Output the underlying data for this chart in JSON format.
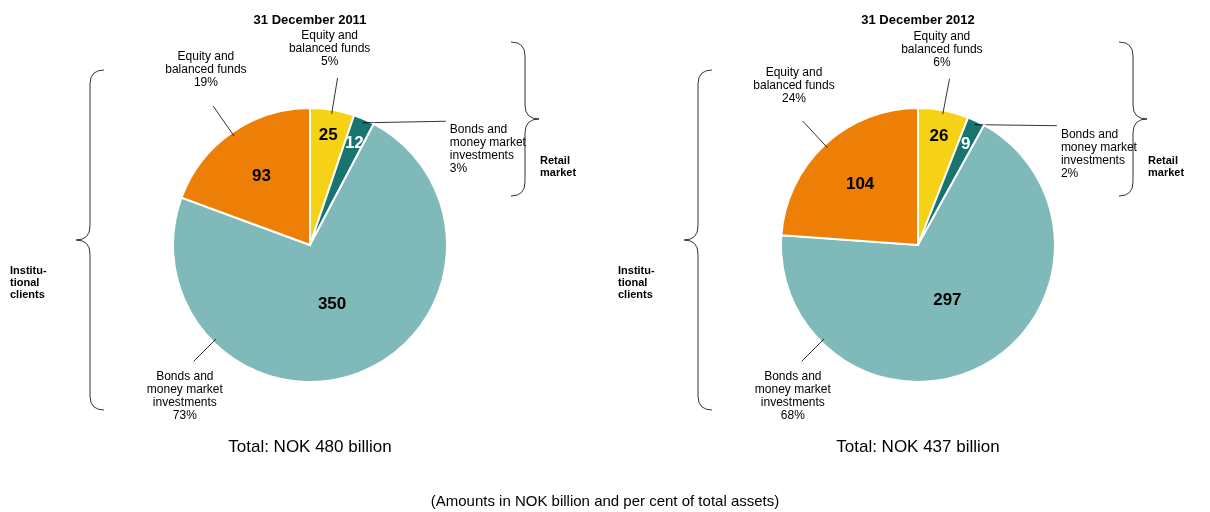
{
  "chart_data": [
    {
      "type": "pie",
      "title": "31 December 2011",
      "subtitle": "Total: NOK 480 billion",
      "categories": [
        "Equity and\nbalanced funds\n5%",
        "Bonds and\nmoney market\ninvestments\n3%",
        "Bonds and\nmoney market\ninvestments\n73%",
        "Equity and\nbalanced funds\n19%"
      ],
      "values": [
        25,
        12,
        350,
        93
      ],
      "colors": [
        "#f5d215",
        "#17746f",
        "#80b9b9",
        "#ee7f06"
      ],
      "data_labels": true,
      "annotations": [
        "Institu-\ntional\nclients",
        "Retail\nmarket",
        "(Amounts in NOK billion and per cent of total assets)"
      ]
    },
    {
      "type": "pie",
      "title": "31 December 2012",
      "subtitle": "Total: NOK 437 billion",
      "categories": [
        "Equity and\nbalanced funds\n6%",
        "Bonds and\nmoney market\ninvestments\n2%",
        "Bonds and\nmoney market\ninvestments\n68%",
        "Equity and\nbalanced funds\n24%"
      ],
      "values": [
        26,
        9,
        297,
        104
      ],
      "colors": [
        "#f5d215",
        "#17746f",
        "#80b9b9",
        "#ee7f06"
      ],
      "data_labels": true,
      "annotations": [
        "Institu-\ntional\nclients",
        "Retail\nmarket"
      ]
    }
  ]
}
